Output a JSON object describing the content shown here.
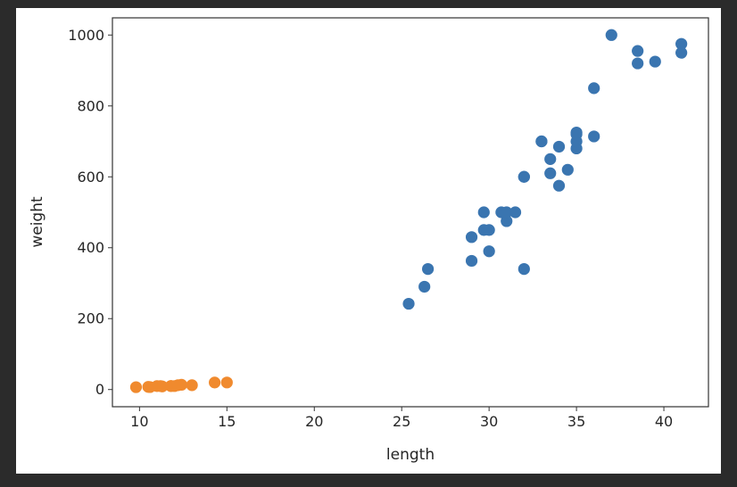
{
  "chart_data": {
    "type": "scatter",
    "xlabel": "length",
    "ylabel": "weight",
    "xlim": [
      8.45,
      42.55
    ],
    "ylim": [
      -48.5,
      1048.5
    ],
    "xticks": [
      10,
      15,
      20,
      25,
      30,
      35,
      40
    ],
    "yticks": [
      0,
      200,
      400,
      600,
      800,
      1000
    ],
    "grid": false,
    "series": [
      {
        "color": "#3a75b0",
        "points": [
          [
            25.4,
            242
          ],
          [
            26.3,
            290
          ],
          [
            26.5,
            340
          ],
          [
            29.0,
            363
          ],
          [
            29.0,
            430
          ],
          [
            29.7,
            450
          ],
          [
            29.7,
            500
          ],
          [
            30.0,
            390
          ],
          [
            30.0,
            450
          ],
          [
            30.7,
            500
          ],
          [
            31.0,
            475
          ],
          [
            31.0,
            500
          ],
          [
            31.5,
            500
          ],
          [
            32.0,
            340
          ],
          [
            32.0,
            600
          ],
          [
            32.0,
            600
          ],
          [
            33.0,
            700
          ],
          [
            33.0,
            700
          ],
          [
            33.5,
            610
          ],
          [
            33.5,
            650
          ],
          [
            34.0,
            575
          ],
          [
            34.0,
            685
          ],
          [
            34.5,
            620
          ],
          [
            35.0,
            680
          ],
          [
            35.0,
            700
          ],
          [
            35.0,
            725
          ],
          [
            35.0,
            720
          ],
          [
            36.0,
            714
          ],
          [
            36.0,
            850
          ],
          [
            37.0,
            1000
          ],
          [
            38.5,
            920
          ],
          [
            38.5,
            955
          ],
          [
            39.5,
            925
          ],
          [
            41.0,
            975
          ],
          [
            41.0,
            950
          ]
        ]
      },
      {
        "color": "#f08a2e",
        "points": [
          [
            9.8,
            6.7
          ],
          [
            10.5,
            7.5
          ],
          [
            10.6,
            7.0
          ],
          [
            11.0,
            9.7
          ],
          [
            11.2,
            9.8
          ],
          [
            11.3,
            8.7
          ],
          [
            11.8,
            10.0
          ],
          [
            11.8,
            9.9
          ],
          [
            12.0,
            9.8
          ],
          [
            12.2,
            12.2
          ],
          [
            12.4,
            13.4
          ],
          [
            13.0,
            12.2
          ],
          [
            14.3,
            19.7
          ],
          [
            15.0,
            19.9
          ]
        ]
      }
    ]
  }
}
